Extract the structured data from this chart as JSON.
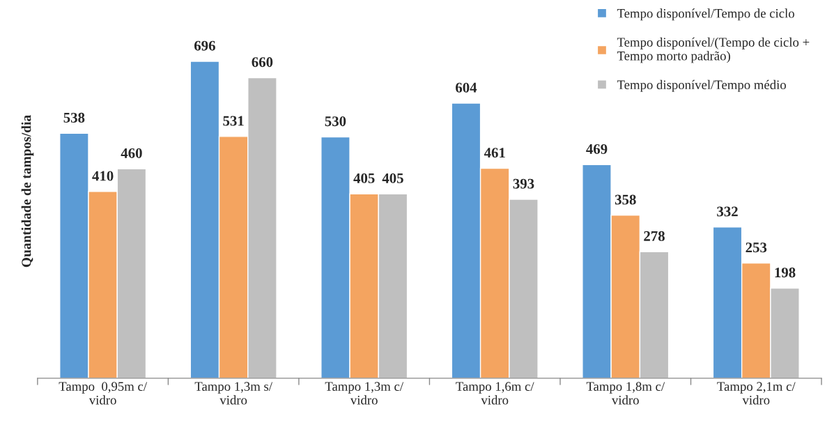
{
  "chart_data": {
    "type": "bar",
    "ylabel": "Quantidade de tampos/dia",
    "categories": [
      "Tampo  0,95m c/\nvidro",
      "Tampo 1,3m s/\nvidro",
      "Tampo 1,3m c/\nvidro",
      "Tampo 1,6m c/\nvidro",
      "Tampo 1,8m c/\nvidro",
      "Tampo 2,1m c/\nvidro"
    ],
    "series": [
      {
        "name": "Tempo disponível/Tempo de ciclo",
        "color": "#5b9bd5",
        "values": [
          538,
          696,
          530,
          604,
          469,
          332
        ]
      },
      {
        "name": "Tempo disponível/(Tempo de ciclo +\nTempo morto padrão)",
        "color": "#f4a460",
        "values": [
          410,
          531,
          405,
          461,
          358,
          253
        ]
      },
      {
        "name": "Tempo disponível/Tempo médio",
        "color": "#bfbfbf",
        "values": [
          460,
          660,
          405,
          393,
          278,
          198
        ]
      }
    ],
    "data_labels": true,
    "legend": "top right",
    "grid": false
  }
}
